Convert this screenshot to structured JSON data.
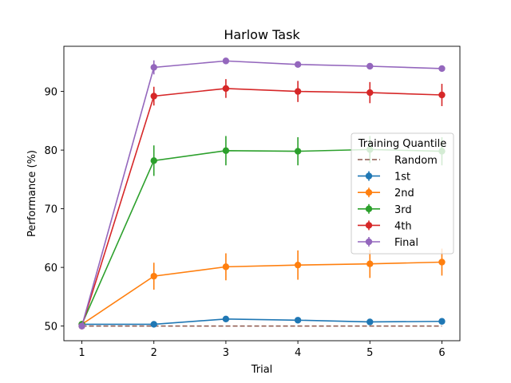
{
  "chart_data": {
    "type": "line",
    "title": "Harlow Task",
    "xlabel": "Trial",
    "ylabel": "Performance (%)",
    "x": [
      1,
      2,
      3,
      4,
      5,
      6
    ],
    "xticks": [
      "1",
      "2",
      "3",
      "4",
      "5",
      "6"
    ],
    "yticks": [
      50,
      60,
      70,
      80,
      90
    ],
    "xlim": [
      0.75,
      6.25
    ],
    "ylim": [
      47.5,
      97.7
    ],
    "legend": {
      "title": "Training Quantile",
      "placement": "center-right"
    },
    "baseline": {
      "name": "Random",
      "value": 50,
      "color": "#8c564b",
      "style": "dashed"
    },
    "series": [
      {
        "name": "1st",
        "color": "#1f77b4",
        "values": [
          50.3,
          50.3,
          51.2,
          51.0,
          50.7,
          50.8
        ],
        "errors": [
          0.3,
          0.3,
          0.3,
          0.3,
          0.3,
          0.3
        ]
      },
      {
        "name": "2nd",
        "color": "#ff7f0e",
        "values": [
          50.3,
          58.5,
          60.1,
          60.4,
          60.6,
          60.9
        ],
        "errors": [
          0.4,
          2.3,
          2.3,
          2.5,
          2.4,
          2.3
        ]
      },
      {
        "name": "3rd",
        "color": "#2ca02c",
        "values": [
          50.3,
          78.2,
          79.9,
          79.8,
          80.1,
          79.8
        ],
        "errors": [
          0.4,
          2.6,
          2.5,
          2.4,
          2.3,
          2.4
        ]
      },
      {
        "name": "4th",
        "color": "#d62728",
        "values": [
          50.0,
          89.2,
          90.5,
          90.0,
          89.8,
          89.4
        ],
        "errors": [
          0.3,
          1.6,
          1.6,
          1.8,
          1.8,
          1.9
        ]
      },
      {
        "name": "Final",
        "color": "#9467bd",
        "values": [
          50.0,
          94.1,
          95.2,
          94.6,
          94.3,
          93.9
        ],
        "errors": [
          0.3,
          1.2,
          0.4,
          0.4,
          0.4,
          0.4
        ]
      }
    ]
  }
}
